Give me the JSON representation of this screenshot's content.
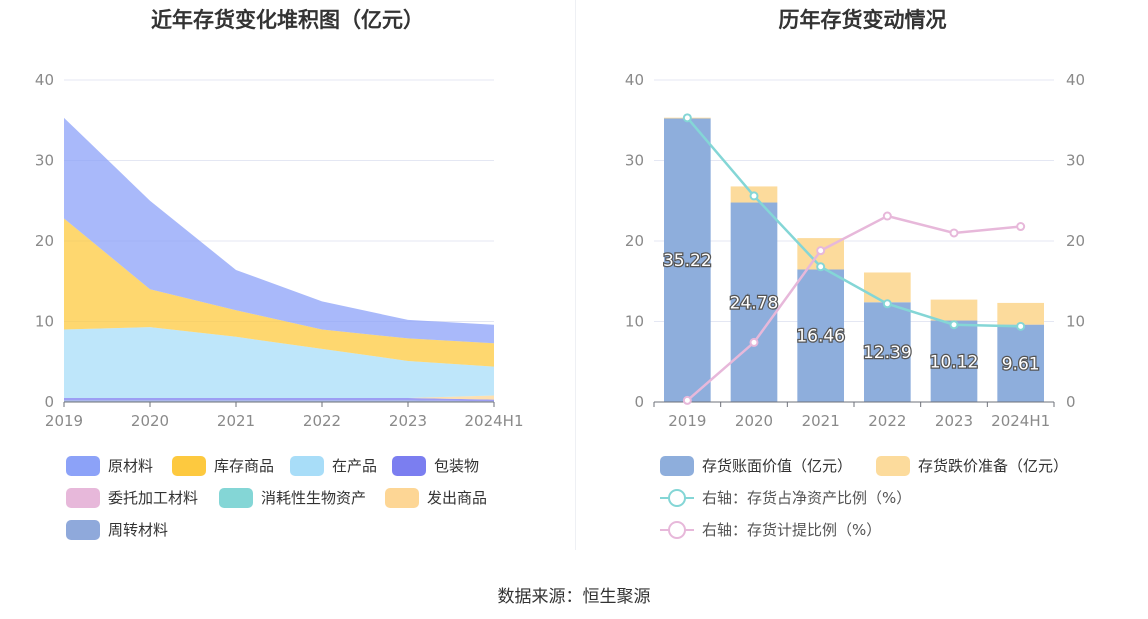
{
  "source": "数据来源：恒生聚源",
  "chart_data": [
    {
      "type": "area",
      "title": "近年存货变化堆积图（亿元）",
      "categories": [
        "2019",
        "2020",
        "2021",
        "2022",
        "2023",
        "2024H1"
      ],
      "yticks": [
        "0",
        "10",
        "20",
        "30",
        "40"
      ],
      "ylim": [
        0,
        40
      ],
      "grid": true,
      "legend_position": "bottom",
      "series": [
        {
          "name": "原材料",
          "color": "#8ca2f8",
          "values": [
            12.5,
            11.0,
            5.0,
            3.5,
            2.3,
            2.3
          ]
        },
        {
          "name": "库存商品",
          "color": "#fdc93f",
          "values": [
            13.8,
            4.7,
            3.3,
            2.4,
            2.8,
            2.9
          ]
        },
        {
          "name": "在产品",
          "color": "#a8ddf8",
          "values": [
            8.5,
            8.8,
            7.6,
            6.1,
            4.6,
            3.6
          ]
        },
        {
          "name": "包装物",
          "color": "#7b7ef0",
          "values": [
            0.3,
            0.3,
            0.3,
            0.3,
            0.3,
            0.2
          ]
        },
        {
          "name": "委托加工材料",
          "color": "#e7b8da",
          "values": [
            0.0,
            0.0,
            0.0,
            0.0,
            0.0,
            0.0
          ]
        },
        {
          "name": "消耗性生物资产",
          "color": "#84d6d6",
          "values": [
            0.0,
            0.0,
            0.0,
            0.0,
            0.0,
            0.0
          ]
        },
        {
          "name": "发出商品",
          "color": "#fdd695",
          "values": [
            0.0,
            0.0,
            0.0,
            0.0,
            0.0,
            0.5
          ]
        },
        {
          "name": "周转材料",
          "color": "#8fa9db",
          "values": [
            0.2,
            0.2,
            0.2,
            0.2,
            0.2,
            0.1
          ]
        }
      ]
    },
    {
      "type": "bar",
      "title": "历年存货变动情况",
      "categories": [
        "2019",
        "2020",
        "2021",
        "2022",
        "2023",
        "2024H1"
      ],
      "yticks_left": [
        "0",
        "10",
        "20",
        "30",
        "40"
      ],
      "yticks_right": [
        "0",
        "10",
        "20",
        "30",
        "40"
      ],
      "ylim": [
        0,
        40
      ],
      "grid": true,
      "legend_position": "bottom",
      "series": [
        {
          "name": "存货账面价值（亿元）",
          "kind": "bar",
          "color": "#8eaedc",
          "values": [
            35.22,
            24.78,
            16.46,
            12.39,
            10.12,
            9.61
          ],
          "labels": [
            "35.22",
            "24.78",
            "16.46",
            "12.39",
            "10.12",
            "9.61"
          ]
        },
        {
          "name": "存货跌价准备（亿元）",
          "kind": "bar",
          "color": "#fcdb9c",
          "values": [
            0.1,
            2.0,
            3.9,
            3.7,
            2.6,
            2.7
          ]
        },
        {
          "name": "右轴：存货占净资产比例（%）",
          "kind": "line",
          "axis": "right",
          "color": "#84d6d6",
          "values": [
            35.3,
            25.6,
            16.8,
            12.2,
            9.6,
            9.4
          ]
        },
        {
          "name": "右轴：存货计提比例（%）",
          "kind": "line",
          "axis": "right",
          "color": "#e7b8da",
          "values": [
            0.2,
            7.4,
            18.8,
            23.1,
            21.0,
            21.8
          ]
        }
      ]
    }
  ]
}
